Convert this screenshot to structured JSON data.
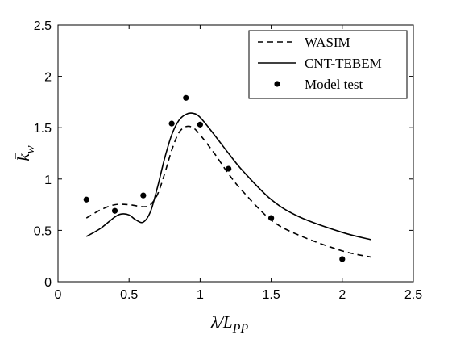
{
  "chart_data": {
    "type": "line",
    "title": "",
    "xlabel": {
      "main": "λ/L",
      "sub": "PP"
    },
    "ylabel": {
      "main": "k",
      "sub": "w",
      "bar": true
    },
    "xlim": [
      0,
      2.5
    ],
    "ylim": [
      0,
      2.5
    ],
    "xticks": [
      0,
      0.5,
      1,
      1.5,
      2,
      2.5
    ],
    "xtick_labels": [
      "0",
      "0.5",
      "1",
      "1.5",
      "2",
      "2.5"
    ],
    "yticks": [
      0,
      0.5,
      1,
      1.5,
      2,
      2.5
    ],
    "ytick_labels": [
      "0",
      "0.5",
      "1",
      "1.5",
      "2",
      "2.5"
    ],
    "grid": false,
    "legend_position": "top-right",
    "series": [
      {
        "name": "WASIM",
        "style": "dashed-line",
        "x": [
          0.2,
          0.3,
          0.4,
          0.5,
          0.6,
          0.65,
          0.7,
          0.75,
          0.8,
          0.85,
          0.9,
          0.95,
          1.0,
          1.1,
          1.2,
          1.3,
          1.5,
          1.7,
          2.0,
          2.2
        ],
        "y": [
          0.62,
          0.7,
          0.75,
          0.75,
          0.73,
          0.75,
          0.85,
          1.05,
          1.28,
          1.45,
          1.51,
          1.5,
          1.43,
          1.25,
          1.05,
          0.88,
          0.6,
          0.45,
          0.3,
          0.24
        ]
      },
      {
        "name": "CNT-TEBEM",
        "style": "solid-line",
        "x": [
          0.2,
          0.3,
          0.4,
          0.45,
          0.5,
          0.55,
          0.6,
          0.65,
          0.7,
          0.75,
          0.8,
          0.85,
          0.9,
          0.95,
          1.0,
          1.1,
          1.2,
          1.3,
          1.5,
          1.7,
          2.0,
          2.2
        ],
        "y": [
          0.44,
          0.52,
          0.63,
          0.66,
          0.65,
          0.6,
          0.58,
          0.68,
          0.92,
          1.2,
          1.43,
          1.57,
          1.63,
          1.64,
          1.6,
          1.43,
          1.25,
          1.08,
          0.8,
          0.63,
          0.48,
          0.41
        ]
      },
      {
        "name": "Model test",
        "style": "markers",
        "x": [
          0.2,
          0.4,
          0.6,
          0.8,
          0.9,
          1.0,
          1.2,
          1.5,
          2.0
        ],
        "y": [
          0.8,
          0.69,
          0.84,
          1.54,
          1.79,
          1.53,
          1.1,
          0.62,
          0.22
        ]
      }
    ]
  }
}
